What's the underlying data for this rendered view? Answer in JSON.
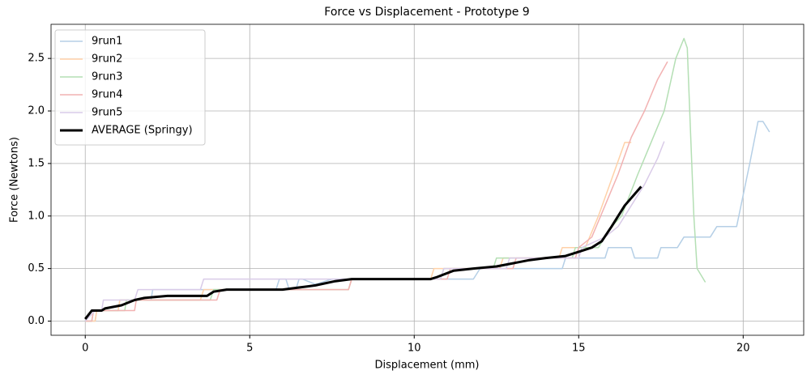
{
  "chart_data": {
    "type": "line",
    "title": "Force vs Displacement - Prototype 9",
    "x_label": "Displacement (mm)",
    "y_label": "Force (Newtons)",
    "xlim": [
      -1.04,
      21.84
    ],
    "ylim": [
      -0.135,
      2.825
    ],
    "xticks": [
      0,
      5,
      10,
      15,
      20
    ],
    "yticks": [
      {
        "value": 0,
        "label": "0.0"
      },
      0.5,
      {
        "value": 1,
        "label": "1.0"
      },
      1.5,
      {
        "value": 2,
        "label": "2.0"
      },
      2.5
    ],
    "grid": true,
    "legend": "upper-left",
    "series": [
      {
        "name": "9run1",
        "color": "#b5cfe6",
        "width": 1.5,
        "x": [
          0,
          0.3,
          0.35,
          1.0,
          1.05,
          2.0,
          2.05,
          5.8,
          5.9,
          6.1,
          6.2,
          6.4,
          6.5,
          6.6,
          7.0,
          7.5,
          8.0,
          8.05,
          11.8,
          11.9,
          12.0,
          14.5,
          14.6,
          15.8,
          15.9,
          16.6,
          16.7,
          17.4,
          17.5,
          18.0,
          18.2,
          19.0,
          19.2,
          19.8,
          20.0,
          20.2,
          20.45,
          20.6,
          20.8
        ],
        "values": [
          0,
          0,
          0.1,
          0.1,
          0.2,
          0.2,
          0.3,
          0.3,
          0.4,
          0.4,
          0.3,
          0.3,
          0.4,
          0.4,
          0.35,
          0.4,
          0.4,
          0.4,
          0.4,
          0.45,
          0.5,
          0.5,
          0.6,
          0.6,
          0.7,
          0.7,
          0.6,
          0.6,
          0.7,
          0.7,
          0.8,
          0.8,
          0.9,
          0.9,
          1.2,
          1.5,
          1.9,
          1.9,
          1.8
        ]
      },
      {
        "name": "9run2",
        "color": "#ffd1a8",
        "width": 1.5,
        "x": [
          0,
          0.3,
          0.35,
          1.0,
          1.05,
          3.5,
          3.6,
          8.0,
          8.1,
          10.5,
          10.6,
          12.6,
          12.7,
          14.4,
          14.5,
          15.2,
          15.6,
          16.0,
          16.4,
          16.6
        ],
        "values": [
          0,
          0,
          0.1,
          0.1,
          0.2,
          0.2,
          0.3,
          0.3,
          0.4,
          0.4,
          0.5,
          0.5,
          0.6,
          0.6,
          0.7,
          0.7,
          1.0,
          1.35,
          1.7,
          1.7
        ]
      },
      {
        "name": "9run3",
        "color": "#b4dfb4",
        "width": 1.5,
        "x": [
          0,
          0.2,
          0.25,
          1.2,
          1.25,
          3.8,
          3.9,
          8.0,
          8.1,
          10.8,
          10.9,
          12.4,
          12.5,
          14.8,
          14.9,
          15.6,
          16.0,
          16.3,
          16.8,
          17.2,
          17.6,
          17.95,
          18.2,
          18.3,
          18.4,
          18.5,
          18.6,
          18.85
        ],
        "values": [
          0,
          0,
          0.1,
          0.1,
          0.2,
          0.2,
          0.3,
          0.3,
          0.4,
          0.4,
          0.5,
          0.5,
          0.6,
          0.6,
          0.7,
          0.7,
          0.9,
          1.0,
          1.4,
          1.7,
          2.0,
          2.5,
          2.69,
          2.6,
          1.8,
          1.0,
          0.5,
          0.37
        ]
      },
      {
        "name": "9run4",
        "color": "#f2b2b2",
        "width": 1.5,
        "x": [
          0,
          0.2,
          0.25,
          1.5,
          1.55,
          4.0,
          4.1,
          8.0,
          8.1,
          11.0,
          11.1,
          13.0,
          13.1,
          14.9,
          15.0,
          15.4,
          15.8,
          16.2,
          16.6,
          17.0,
          17.4,
          17.7
        ],
        "values": [
          0,
          0,
          0.1,
          0.1,
          0.2,
          0.2,
          0.3,
          0.3,
          0.4,
          0.4,
          0.5,
          0.5,
          0.6,
          0.6,
          0.7,
          0.8,
          1.1,
          1.4,
          1.75,
          2.0,
          2.3,
          2.47
        ]
      },
      {
        "name": "9run5",
        "color": "#d9cbe8",
        "width": 1.5,
        "x": [
          0,
          0.3,
          0.5,
          0.55,
          1.5,
          1.6,
          3.5,
          3.6,
          7.5,
          7.6,
          10.8,
          10.9,
          12.8,
          12.9,
          15.0,
          15.1,
          15.8,
          16.2,
          16.6,
          17.0,
          17.4,
          17.6
        ],
        "values": [
          0,
          0.1,
          0.1,
          0.2,
          0.2,
          0.3,
          0.3,
          0.4,
          0.4,
          0.4,
          0.4,
          0.5,
          0.5,
          0.6,
          0.6,
          0.7,
          0.8,
          0.9,
          1.1,
          1.3,
          1.55,
          1.71
        ]
      },
      {
        "name": "AVERAGE (Springy)",
        "color": "#000000",
        "width": 3,
        "x": [
          0,
          0.2,
          0.5,
          0.6,
          1.1,
          1.5,
          1.8,
          2.5,
          3.7,
          3.9,
          4.3,
          6.0,
          6.5,
          7.0,
          7.6,
          8.1,
          10.5,
          10.7,
          11.2,
          11.8,
          12.5,
          13.0,
          13.5,
          14.0,
          14.6,
          15.0,
          15.4,
          15.7,
          16.0,
          16.4,
          16.9
        ],
        "values": [
          0.02,
          0.1,
          0.1,
          0.12,
          0.15,
          0.2,
          0.22,
          0.24,
          0.24,
          0.28,
          0.3,
          0.3,
          0.32,
          0.34,
          0.38,
          0.4,
          0.4,
          0.42,
          0.48,
          0.5,
          0.52,
          0.55,
          0.58,
          0.6,
          0.62,
          0.66,
          0.7,
          0.76,
          0.9,
          1.1,
          1.28
        ]
      }
    ]
  }
}
